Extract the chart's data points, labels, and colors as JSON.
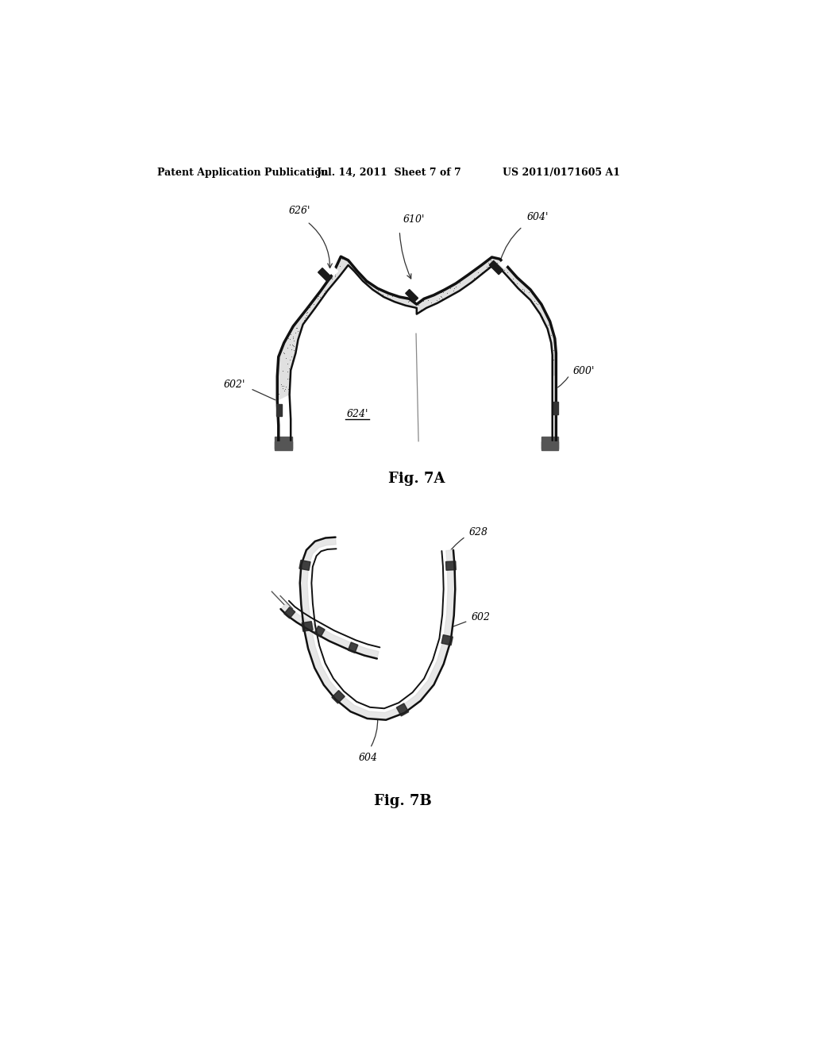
{
  "background_color": "#ffffff",
  "header_left": "Patent Application Publication",
  "header_mid": "Jul. 14, 2011  Sheet 7 of 7",
  "header_right": "US 2011/0171605 A1",
  "fig7a_label": "Fig. 7A",
  "fig7b_label": "Fig. 7B",
  "label_626p": "626'",
  "label_610p": "610'",
  "label_604p": "604'",
  "label_602p": "602'",
  "label_600p": "600'",
  "label_624p": "624'",
  "label_628": "628",
  "label_602": "602",
  "label_604": "604"
}
